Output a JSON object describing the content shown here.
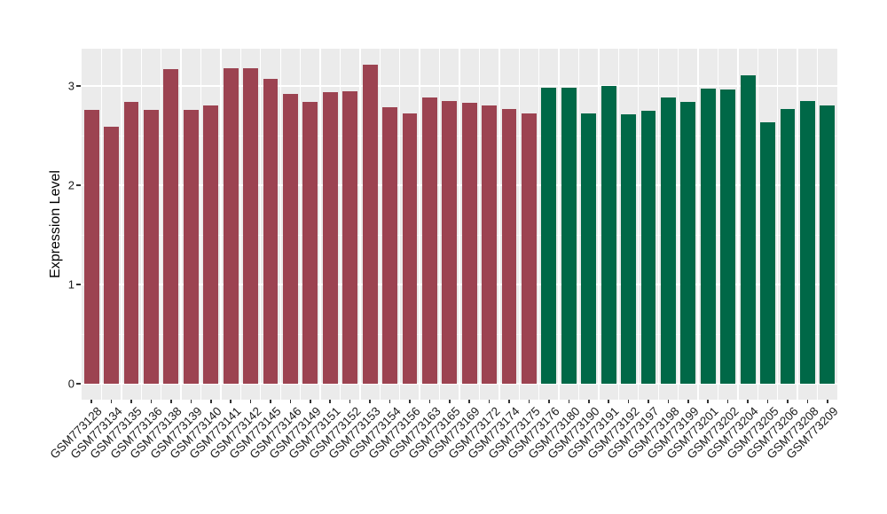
{
  "figure": {
    "background": "#FFFFFF",
    "panel_background": "#EBEBEB",
    "grid_major_color": "#FFFFFF",
    "grid_minor_color": "#F5F5F5",
    "tick_color": "#333333",
    "axis_text_color": "#1A1A1A",
    "axis_title_color": "#000000"
  },
  "chart_data": {
    "type": "bar",
    "title": "",
    "xlabel": "",
    "ylabel": "Expression Level",
    "ylim": [
      0,
      3.375
    ],
    "yticks": [
      0,
      1,
      2,
      3
    ],
    "yminor": [
      0.5,
      1.5,
      2.5
    ],
    "grid": true,
    "legend": "none",
    "x_label_angle": 45,
    "categories": [
      "GSM773128",
      "GSM773134",
      "GSM773135",
      "GSM773136",
      "GSM773138",
      "GSM773139",
      "GSM773140",
      "GSM773141",
      "GSM773142",
      "GSM773145",
      "GSM773146",
      "GSM773149",
      "GSM773151",
      "GSM773152",
      "GSM773153",
      "GSM773154",
      "GSM773156",
      "GSM773163",
      "GSM773165",
      "GSM773169",
      "GSM773172",
      "GSM773174",
      "GSM773175",
      "GSM773176",
      "GSM773180",
      "GSM773190",
      "GSM773191",
      "GSM773192",
      "GSM773197",
      "GSM773198",
      "GSM773199",
      "GSM773201",
      "GSM773202",
      "GSM773204",
      "GSM773205",
      "GSM773206",
      "GSM773208",
      "GSM773209"
    ],
    "values": [
      2.76,
      2.59,
      2.84,
      2.76,
      3.17,
      2.76,
      2.8,
      3.18,
      3.18,
      3.07,
      2.92,
      2.84,
      2.94,
      2.95,
      3.21,
      2.79,
      2.72,
      2.88,
      2.85,
      2.83,
      2.8,
      2.77,
      2.72,
      2.98,
      2.98,
      2.72,
      3.0,
      2.71,
      2.75,
      2.88,
      2.84,
      2.97,
      2.96,
      3.11,
      2.63,
      2.77,
      2.85,
      2.8
    ],
    "groups": [
      "group1",
      "group1",
      "group1",
      "group1",
      "group1",
      "group1",
      "group1",
      "group1",
      "group1",
      "group1",
      "group1",
      "group1",
      "group1",
      "group1",
      "group1",
      "group1",
      "group1",
      "group1",
      "group1",
      "group1",
      "group1",
      "group1",
      "group1",
      "group2",
      "group2",
      "group2",
      "group2",
      "group2",
      "group2",
      "group2",
      "group2",
      "group2",
      "group2",
      "group2",
      "group2",
      "group2",
      "group2",
      "group2"
    ],
    "group_colors": {
      "group1": "#9C4351",
      "group2": "#006847"
    }
  }
}
